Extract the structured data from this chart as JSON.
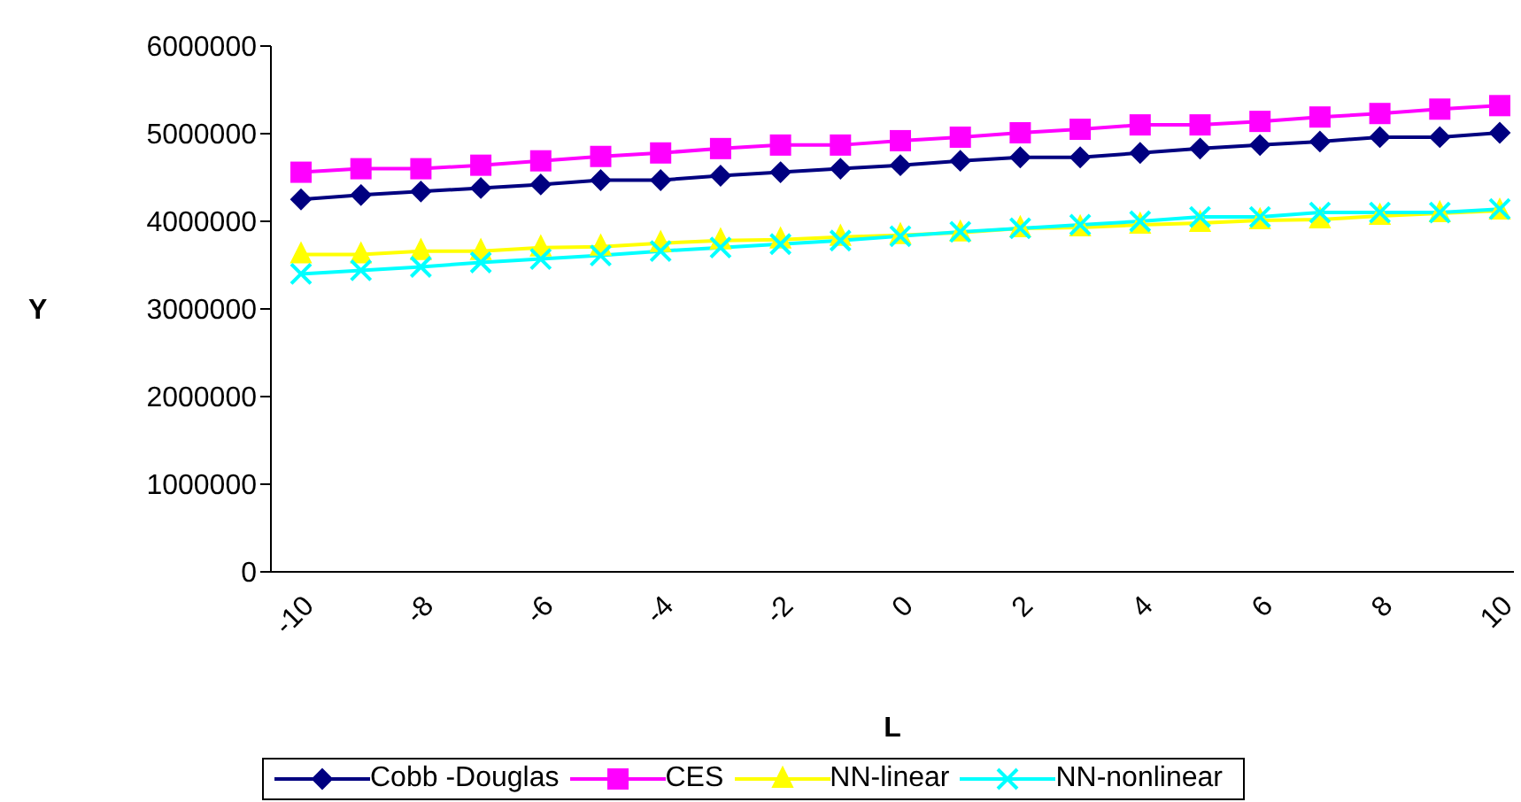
{
  "chart_data": {
    "type": "line",
    "xlabel": "L",
    "ylabel": "Y",
    "categories": [
      "-10",
      null,
      "-8",
      null,
      "-6",
      null,
      "-4",
      null,
      "-2",
      null,
      "0",
      null,
      "2",
      null,
      "4",
      null,
      "6",
      null,
      "8",
      null,
      "10"
    ],
    "series": [
      {
        "name": "Cobb -Douglas",
        "color": "#000080",
        "marker": "diamond",
        "values": [
          4250000,
          4300000,
          4340000,
          4380000,
          4420000,
          4470000,
          4470000,
          4520000,
          4560000,
          4600000,
          4640000,
          4690000,
          4730000,
          4730000,
          4780000,
          4830000,
          4870000,
          4910000,
          4960000,
          4960000,
          5010000
        ]
      },
      {
        "name": "CES",
        "color": "#ff00ff",
        "marker": "square",
        "values": [
          4560000,
          4600000,
          4600000,
          4640000,
          4690000,
          4740000,
          4780000,
          4830000,
          4870000,
          4870000,
          4920000,
          4960000,
          5010000,
          5050000,
          5100000,
          5100000,
          5140000,
          5190000,
          5230000,
          5280000,
          5320000
        ]
      },
      {
        "name": "NN-linear",
        "color": "#ffff00",
        "marker": "triangle",
        "values": [
          3620000,
          3620000,
          3660000,
          3660000,
          3700000,
          3710000,
          3750000,
          3780000,
          3790000,
          3820000,
          3840000,
          3870000,
          3920000,
          3930000,
          3960000,
          3980000,
          4010000,
          4020000,
          4060000,
          4090000,
          4120000
        ]
      },
      {
        "name": "NN-nonlinear",
        "color": "#00ffff",
        "marker": "cross",
        "values": [
          3400000,
          3440000,
          3480000,
          3530000,
          3570000,
          3610000,
          3660000,
          3700000,
          3740000,
          3780000,
          3830000,
          3880000,
          3920000,
          3960000,
          4000000,
          4050000,
          4050000,
          4100000,
          4100000,
          4100000,
          4140000
        ]
      }
    ],
    "ylim": [
      0,
      6000000
    ],
    "yticks": [
      0,
      1000000,
      2000000,
      3000000,
      4000000,
      5000000,
      6000000
    ],
    "grid": false,
    "legend": "bottom",
    "line_style": "solid"
  }
}
